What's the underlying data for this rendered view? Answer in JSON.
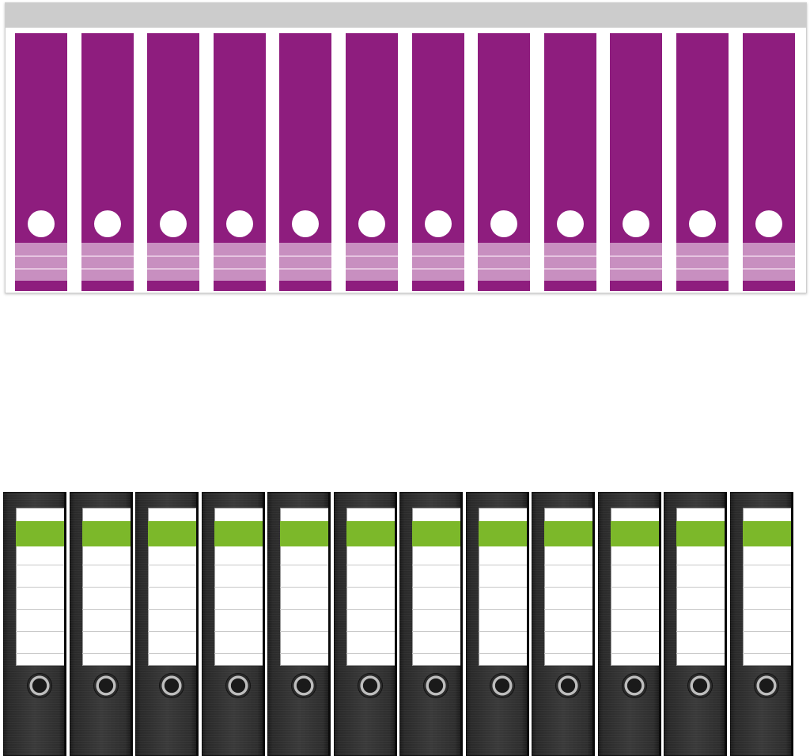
{
  "colors": {
    "label_primary": "#8e1d7e",
    "label_band_light": "#c88fc0",
    "label_band_divider": "#e6c4e0",
    "binder_accent": "#7cb82a"
  },
  "label_sheet": {
    "label_count": 12
  },
  "binders": {
    "binder_count": 12
  }
}
